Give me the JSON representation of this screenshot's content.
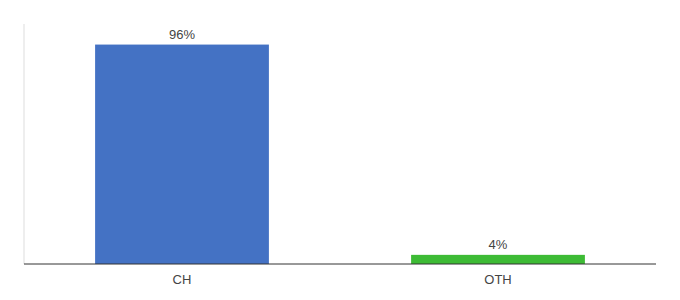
{
  "chart_data": {
    "type": "bar",
    "categories": [
      "CH",
      "OTH"
    ],
    "values": [
      96,
      4
    ],
    "value_labels": [
      "96%",
      "4%"
    ],
    "colors": [
      "#4472c4",
      "#3dbb35"
    ],
    "ylim": [
      0,
      105
    ],
    "data_labels": true,
    "tick_labels": "x",
    "grid": false
  }
}
